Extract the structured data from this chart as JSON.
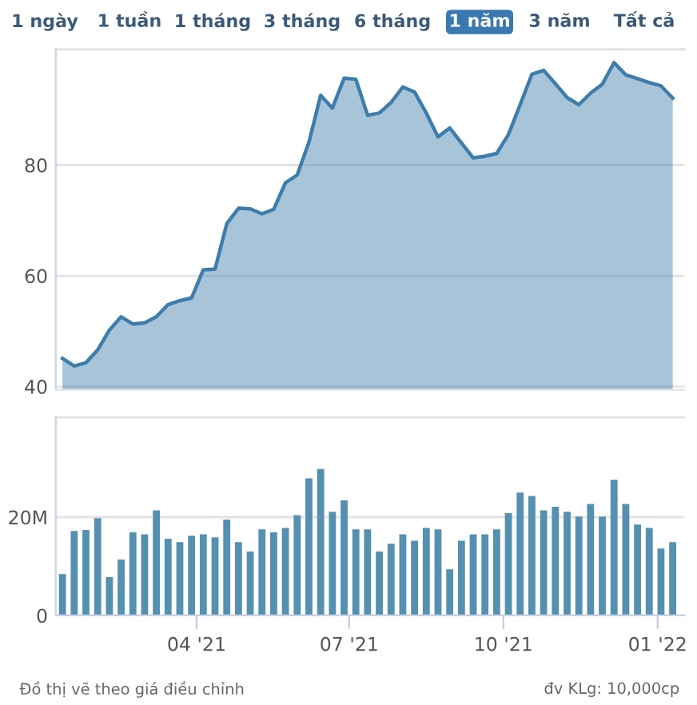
{
  "chart_data": [
    {
      "type": "other",
      "categories": [
        "1 ngày",
        "1 tuần",
        "1 tháng",
        "3 tháng",
        "6 tháng",
        "1 năm",
        "3 năm",
        "Tất cả"
      ],
      "colors": [
        "#ffffff",
        "#ffffff",
        "#ffffff",
        "#ffffff",
        "#ffffff",
        "#3a78b0",
        "#ffffff",
        "#ffffff"
      ]
    },
    {
      "type": "area",
      "x": [
        "2021-01-11",
        "2021-01-18",
        "2021-01-25",
        "2021-02-01",
        "2021-02-08",
        "2021-02-15",
        "2021-02-22",
        "2021-03-01",
        "2021-03-08",
        "2021-03-15",
        "2021-03-22",
        "2021-03-29",
        "2021-04-05",
        "2021-04-12",
        "2021-04-19",
        "2021-04-26",
        "2021-05-03",
        "2021-05-10",
        "2021-05-17",
        "2021-05-24",
        "2021-05-31",
        "2021-06-07",
        "2021-06-14",
        "2021-06-21",
        "2021-06-28",
        "2021-07-05",
        "2021-07-12",
        "2021-07-19",
        "2021-07-26",
        "2021-08-02",
        "2021-08-09",
        "2021-08-16",
        "2021-08-23",
        "2021-08-30",
        "2021-09-06",
        "2021-09-13",
        "2021-09-20",
        "2021-09-27",
        "2021-10-04",
        "2021-10-11",
        "2021-10-18",
        "2021-10-25",
        "2021-11-01",
        "2021-11-08",
        "2021-11-15",
        "2021-11-22",
        "2021-11-29",
        "2021-12-06",
        "2021-12-13",
        "2021-12-20",
        "2021-12-27",
        "2022-01-03",
        "2022-01-10"
      ],
      "series": [
        {
          "color": "#3d7dab",
          "values": [
            45.1,
            43.7,
            44.3,
            46.6,
            50.2,
            52.6,
            51.3,
            51.5,
            52.6,
            54.8,
            55.5,
            56.0,
            61.1,
            61.2,
            69.4,
            72.2,
            72.1,
            71.2,
            72.0,
            76.8,
            78.2,
            84.1,
            92.6,
            90.3,
            95.7,
            95.5,
            89.0,
            89.4,
            91.3,
            94.1,
            93.2,
            89.4,
            85.1,
            86.7,
            84.0,
            81.3,
            81.6,
            82.1,
            85.5,
            90.9,
            96.4,
            97.1,
            94.7,
            92.2,
            90.9,
            93.0,
            94.6,
            98.5,
            96.3,
            95.6,
            94.9,
            94.3,
            92.1
          ]
        }
      ],
      "xlim": [
        "2021-01-07",
        "2022-01-17"
      ],
      "ylim": [
        39.4,
        100.9
      ],
      "yticks": [
        40,
        60,
        80
      ],
      "grid": "y",
      "tick_labels": "y"
    },
    {
      "type": "bar",
      "x": [
        "2021-01-11",
        "2021-01-18",
        "2021-01-25",
        "2021-02-01",
        "2021-02-08",
        "2021-02-15",
        "2021-02-22",
        "2021-03-01",
        "2021-03-08",
        "2021-03-15",
        "2021-03-22",
        "2021-03-29",
        "2021-04-05",
        "2021-04-12",
        "2021-04-19",
        "2021-04-26",
        "2021-05-03",
        "2021-05-10",
        "2021-05-17",
        "2021-05-24",
        "2021-05-31",
        "2021-06-07",
        "2021-06-14",
        "2021-06-21",
        "2021-06-28",
        "2021-07-05",
        "2021-07-12",
        "2021-07-19",
        "2021-07-26",
        "2021-08-02",
        "2021-08-09",
        "2021-08-16",
        "2021-08-23",
        "2021-08-30",
        "2021-09-06",
        "2021-09-13",
        "2021-09-20",
        "2021-09-27",
        "2021-10-04",
        "2021-10-11",
        "2021-10-18",
        "2021-10-25",
        "2021-11-01",
        "2021-11-08",
        "2021-11-15",
        "2021-11-22",
        "2021-11-29",
        "2021-12-06",
        "2021-12-13",
        "2021-12-20",
        "2021-12-27",
        "2022-01-03",
        "2022-01-10"
      ],
      "series": [
        {
          "color": "#5590b0",
          "values": [
            8.4,
            17.2,
            17.4,
            19.8,
            7.8,
            11.4,
            16.9,
            16.5,
            21.4,
            15.6,
            14.9,
            16.2,
            16.5,
            15.9,
            19.5,
            14.9,
            13.0,
            17.5,
            16.9,
            17.8,
            20.4,
            27.9,
            29.8,
            21.1,
            23.4,
            17.5,
            17.5,
            13.0,
            14.6,
            16.5,
            15.2,
            17.8,
            17.5,
            9.4,
            15.2,
            16.5,
            16.5,
            17.5,
            20.8,
            25.0,
            24.3,
            21.4,
            22.1,
            21.1,
            20.1,
            22.7,
            20.1,
            27.6,
            22.7,
            18.5,
            17.8,
            13.6,
            14.9
          ]
        }
      ],
      "xlim": [
        "2021-01-07",
        "2022-01-17"
      ],
      "xticks": [
        {
          "value": "2021-04-01",
          "label": "04 '21"
        },
        {
          "value": "2021-07-01",
          "label": "07 '21"
        },
        {
          "value": "2021-10-01",
          "label": "10 '21"
        },
        {
          "value": "2022-01-01",
          "label": "01 '22"
        }
      ],
      "ylim": [
        0,
        40.3
      ],
      "yticks": [
        0,
        {
          "value": 20,
          "label": "20M"
        }
      ],
      "grid": "y",
      "annotations": [
        "Đồ thị vẽ theo giá điều chỉnh",
        "đv KLg: 10,000cp"
      ]
    }
  ]
}
